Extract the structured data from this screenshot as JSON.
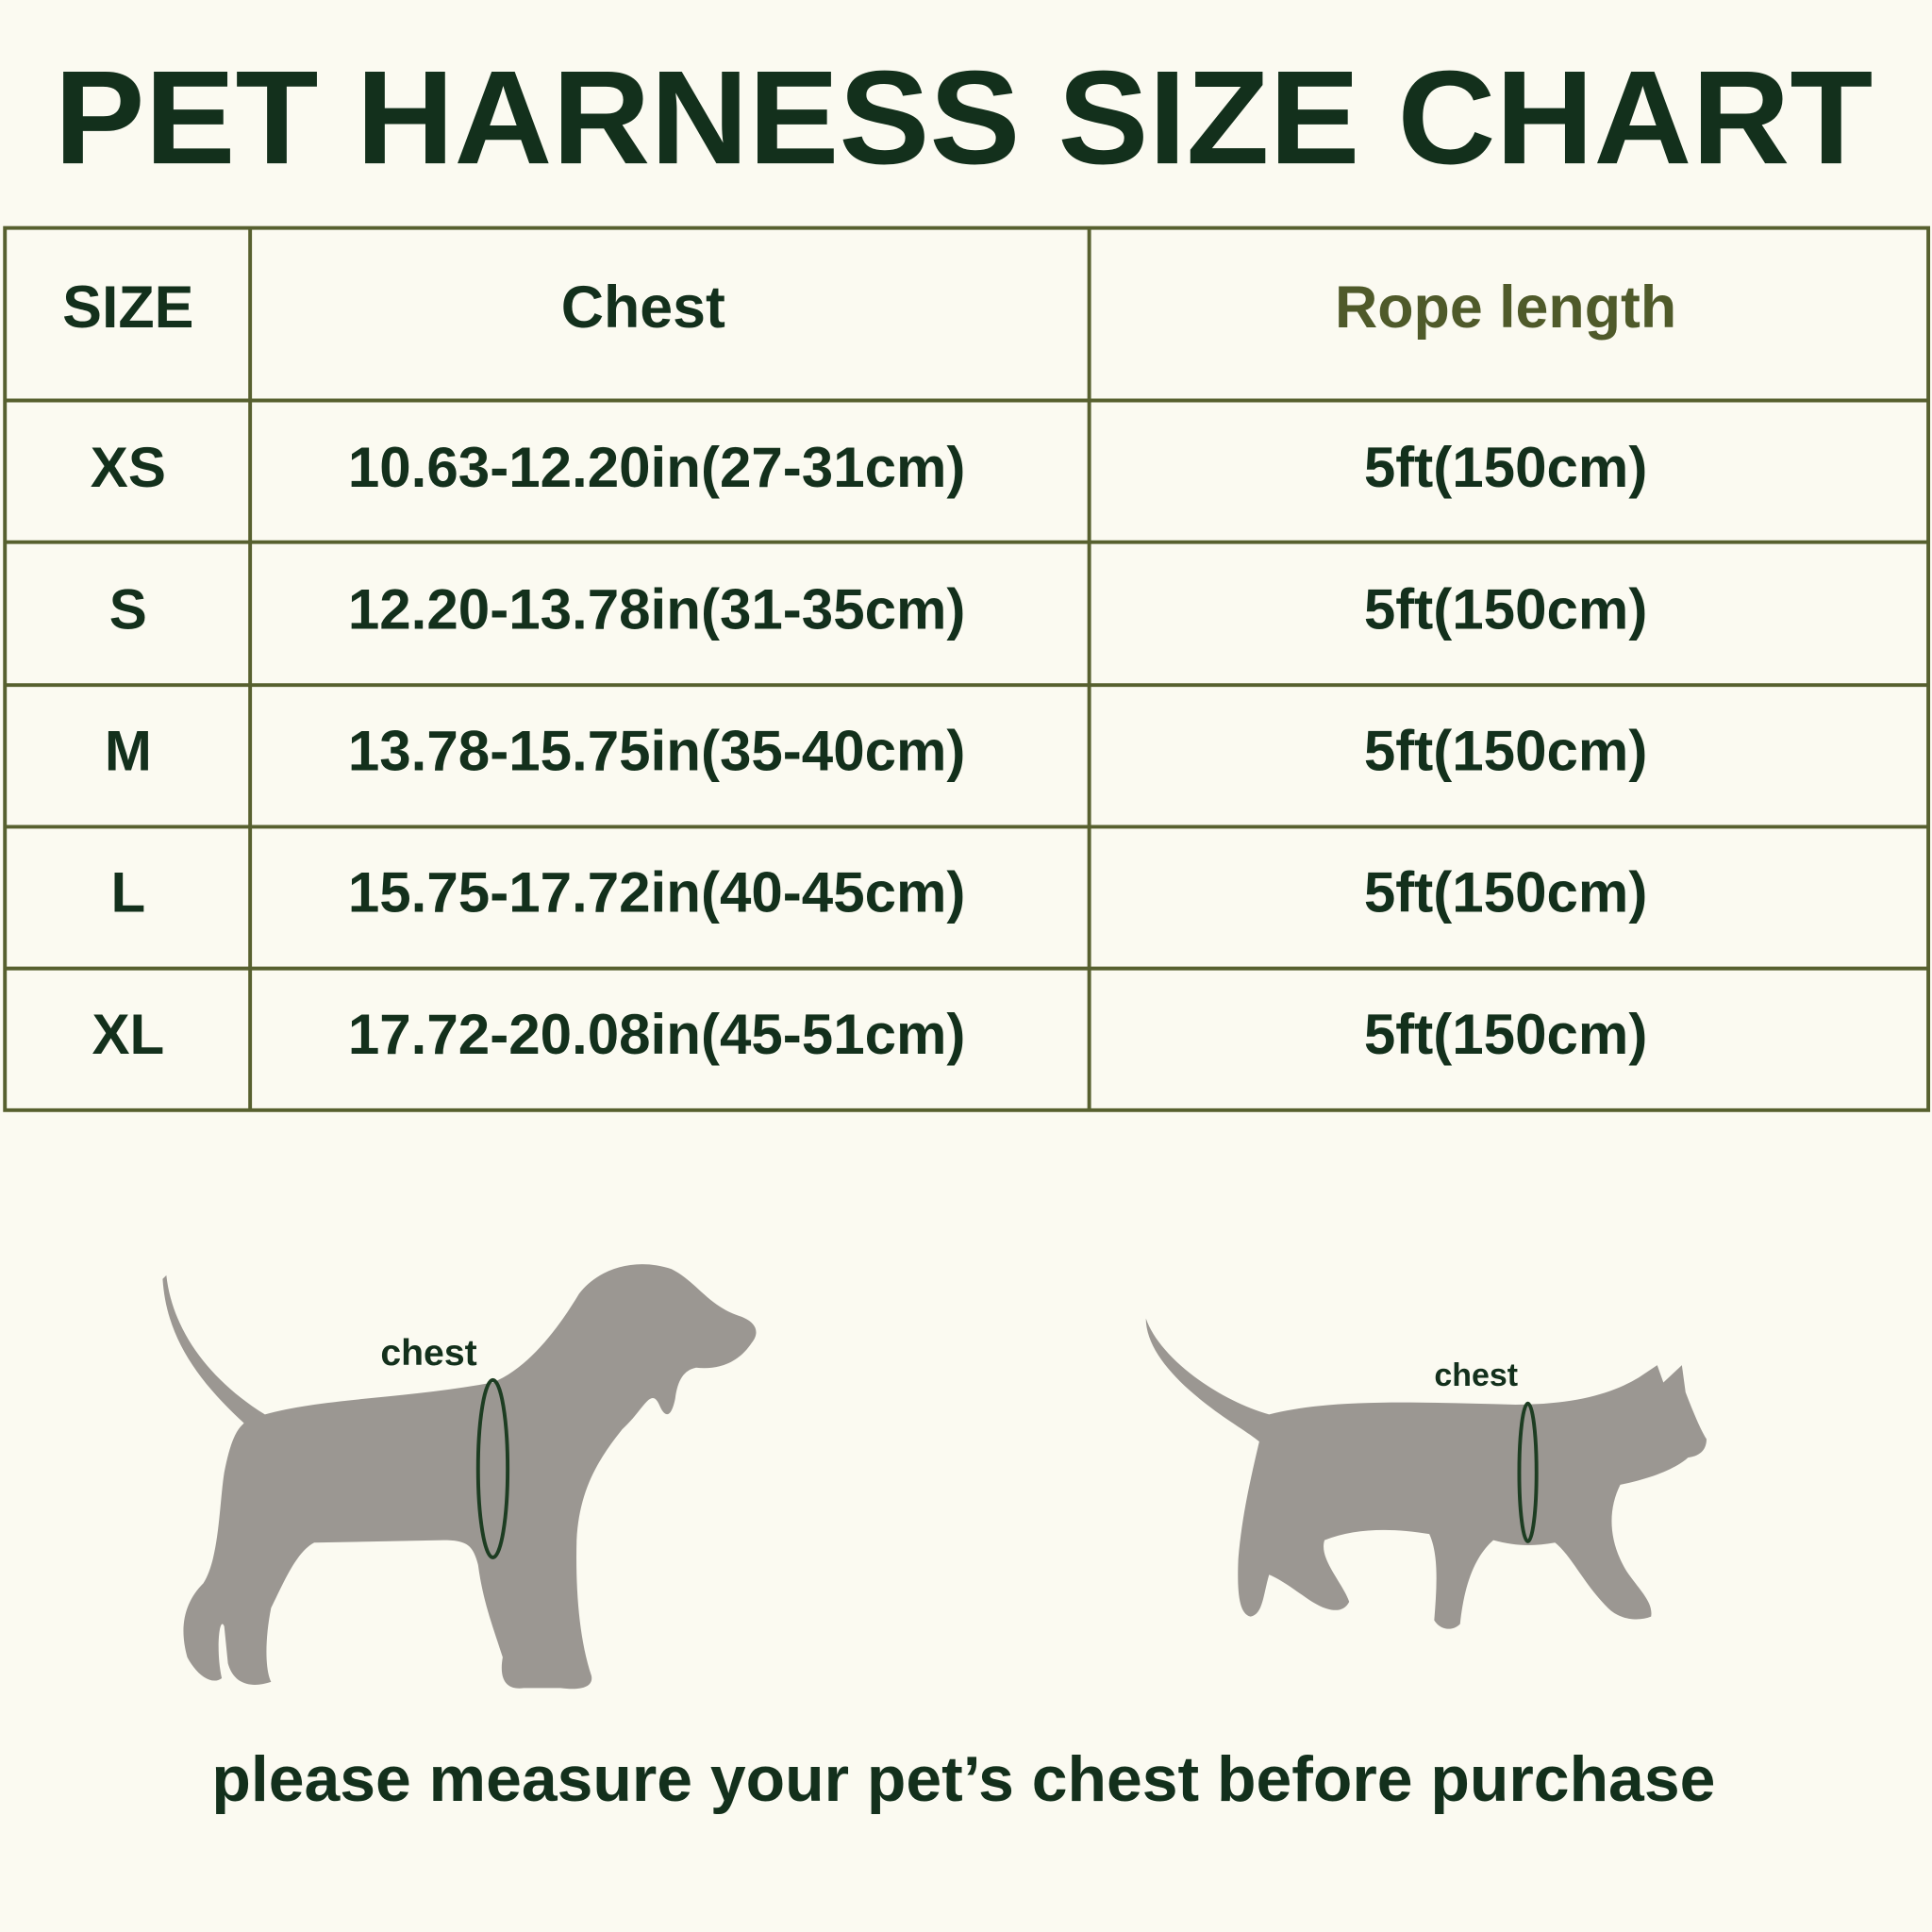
{
  "header": {
    "title": "PET HARNESS SIZE CHART"
  },
  "table": {
    "header": [
      "SIZE",
      "Chest",
      "Rope length"
    ],
    "rows": [
      [
        "XS",
        "10.63-12.20in(27-31cm)",
        "5ft(150cm)"
      ],
      [
        "S",
        "12.20-13.78in(31-35cm)",
        "5ft(150cm)"
      ],
      [
        "M",
        "13.78-15.75in(35-40cm)",
        "5ft(150cm)"
      ],
      [
        "L",
        "15.75-17.72in(40-45cm)",
        "5ft(150cm)"
      ],
      [
        "XL",
        "17.72-20.08in(45-51cm)",
        "5ft(150cm)"
      ]
    ]
  },
  "illustrations": {
    "dog_label": "chest",
    "cat_label": "chest"
  },
  "footer": {
    "text": "please measure your pet’s chest before purchase"
  }
}
